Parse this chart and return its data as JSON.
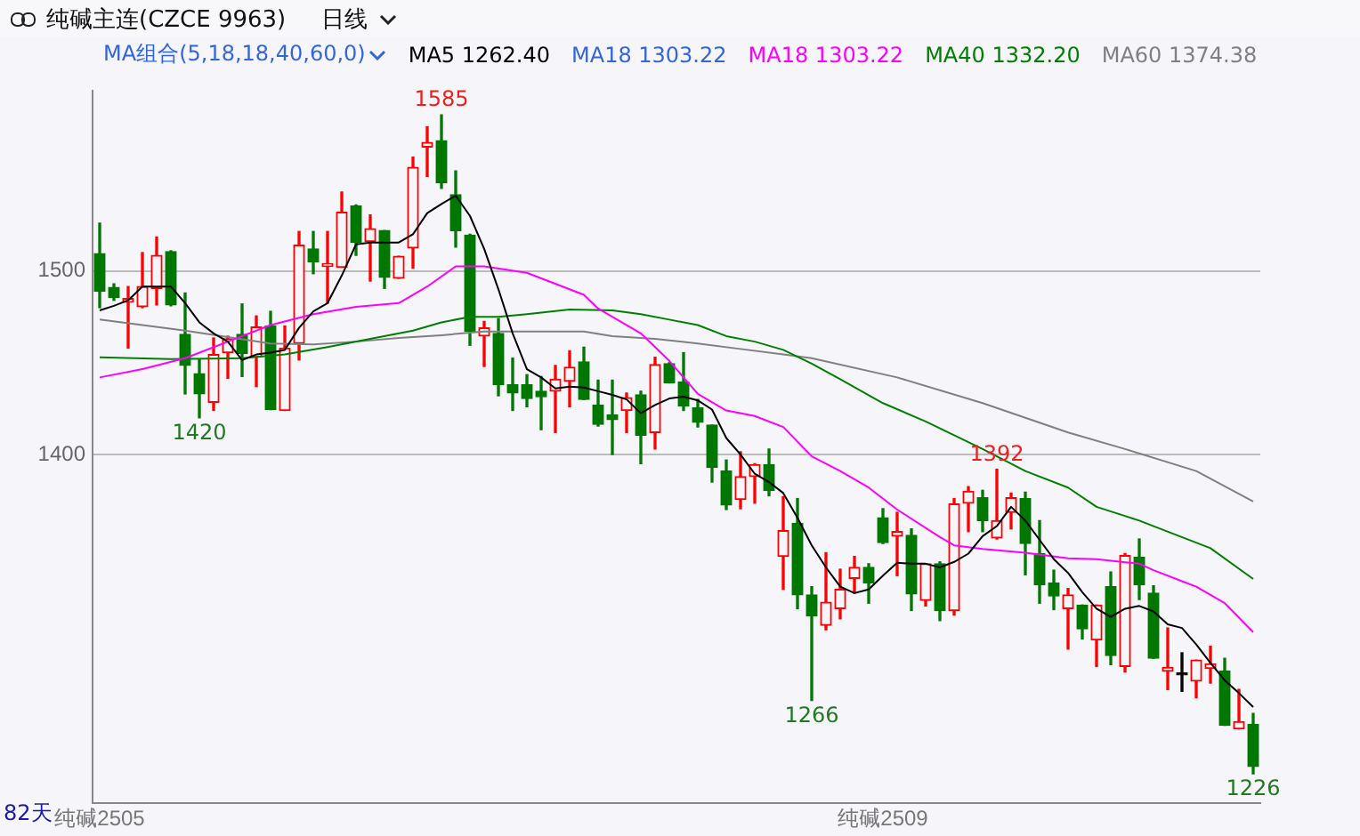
{
  "chart_data": {
    "type": "candlestick",
    "title": "纯碱主连(CZCE 9963)",
    "subtitle": "MA组合(5,18,18,40,60,0)",
    "categories": [
      "纯碱2505",
      null,
      null,
      null,
      null,
      null,
      null,
      null,
      null,
      null,
      null,
      null,
      null,
      null,
      null,
      null,
      null,
      null,
      null,
      null,
      null,
      null,
      null,
      null,
      null,
      null,
      null,
      null,
      null,
      null,
      null,
      null,
      null,
      null,
      null,
      null,
      null,
      null,
      null,
      null,
      null,
      null,
      null,
      null,
      null,
      null,
      null,
      null,
      null,
      null,
      null,
      null,
      null,
      null,
      null,
      "纯碱2509",
      null,
      null,
      null,
      null,
      null,
      null,
      null,
      null,
      null,
      null,
      null,
      null,
      null,
      null,
      null,
      null,
      null,
      null,
      null,
      null,
      null,
      null,
      null,
      null,
      null,
      null
    ],
    "ohlc": [
      [
        1509.5,
        1526,
        1480,
        1489
      ],
      [
        1491,
        1493,
        1484,
        1485.5
      ],
      [
        1483,
        1491.5,
        1458,
        1485
      ],
      [
        1480.5,
        1510,
        1480,
        1491.5
      ],
      [
        1490.5,
        1518.5,
        1481.5,
        1508.5
      ],
      [
        1510.5,
        1511,
        1481,
        1481.5
      ],
      [
        1465.5,
        1488,
        1433,
        1448.5
      ],
      [
        1444,
        1452,
        1420,
        1433
      ],
      [
        1428.5,
        1463.5,
        1424,
        1454.5
      ],
      [
        1455.5,
        1464.5,
        1441.5,
        1463
      ],
      [
        1465.5,
        1482,
        1442.5,
        1455
      ],
      [
        1453,
        1475.5,
        1437,
        1469.5
      ],
      [
        1470,
        1478,
        1424.5,
        1424.5
      ],
      [
        1424,
        1470,
        1424,
        1458
      ],
      [
        1460.5,
        1521.5,
        1451.5,
        1514
      ],
      [
        1512,
        1521.5,
        1498.5,
        1505
      ],
      [
        1502.5,
        1521.5,
        1482.5,
        1504
      ],
      [
        1502,
        1543,
        1502,
        1532
      ],
      [
        1535.5,
        1536,
        1508.5,
        1515.5
      ],
      [
        1516,
        1530.5,
        1494.5,
        1523
      ],
      [
        1522,
        1522,
        1490.5,
        1496.5
      ],
      [
        1496,
        1508,
        1496,
        1508
      ],
      [
        1512.5,
        1562,
        1501.5,
        1556.5
      ],
      [
        1567.5,
        1578.5,
        1551.5,
        1570
      ],
      [
        1571,
        1585,
        1545,
        1548
      ],
      [
        1541.5,
        1554.5,
        1513,
        1522
      ],
      [
        1519.5,
        1520,
        1459.5,
        1467
      ],
      [
        1464.5,
        1472.5,
        1448,
        1469
      ],
      [
        1466,
        1474,
        1432,
        1438
      ],
      [
        1438,
        1452.5,
        1424,
        1433.5
      ],
      [
        1438,
        1443.5,
        1426,
        1430.5
      ],
      [
        1434.5,
        1442.5,
        1413.5,
        1431.5
      ],
      [
        1434.5,
        1448.5,
        1412,
        1441
      ],
      [
        1440,
        1456.5,
        1426,
        1447.5
      ],
      [
        1450.5,
        1458.5,
        1430,
        1430
      ],
      [
        1427,
        1440.5,
        1415.5,
        1416.5
      ],
      [
        1421.5,
        1440.5,
        1400,
        1419
      ],
      [
        1424,
        1433.5,
        1412,
        1431
      ],
      [
        1432.5,
        1434.5,
        1395,
        1410.5
      ],
      [
        1412,
        1453,
        1403,
        1449
      ],
      [
        1449.5,
        1450,
        1439,
        1439
      ],
      [
        1439.5,
        1455.5,
        1424,
        1426.5
      ],
      [
        1425.5,
        1430,
        1415,
        1417.5
      ],
      [
        1416,
        1416,
        1385,
        1393
      ],
      [
        1391,
        1397,
        1370,
        1372.5
      ],
      [
        1375.5,
        1401.5,
        1370.5,
        1388
      ],
      [
        1388,
        1395,
        1373.5,
        1394.5
      ],
      [
        1394.5,
        1403,
        1377.5,
        1380.5
      ],
      [
        1344.5,
        1377,
        1326.5,
        1358.5
      ],
      [
        1362.5,
        1376,
        1316,
        1323.5
      ],
      [
        1323.5,
        1328,
        1266,
        1312
      ],
      [
        1307,
        1346.5,
        1304.5,
        1319.5
      ],
      [
        1316,
        1337.5,
        1310.5,
        1326.5
      ],
      [
        1332.5,
        1344.5,
        1324.5,
        1338.5
      ],
      [
        1338.5,
        1340.5,
        1319,
        1330
      ],
      [
        1365.5,
        1370.5,
        1351.5,
        1352
      ],
      [
        1355.5,
        1368.5,
        1334,
        1358
      ],
      [
        1356,
        1359.5,
        1315,
        1324
      ],
      [
        1320.5,
        1340.5,
        1317.5,
        1340.5
      ],
      [
        1340.5,
        1341.5,
        1309.5,
        1315
      ],
      [
        1315,
        1376,
        1312.5,
        1373
      ],
      [
        1373.5,
        1382.5,
        1358,
        1380
      ],
      [
        1376.5,
        1380.5,
        1358,
        1364
      ],
      [
        1354.5,
        1392,
        1354,
        1364
      ],
      [
        1368.5,
        1379,
        1359.5,
        1376.5
      ],
      [
        1376,
        1379.5,
        1334.5,
        1351.5
      ],
      [
        1346,
        1364,
        1319,
        1329
      ],
      [
        1330,
        1337,
        1315.5,
        1323
      ],
      [
        1316,
        1327,
        1294,
        1323.5
      ],
      [
        1318,
        1318,
        1299.5,
        1305
      ],
      [
        1299,
        1318,
        1284.5,
        1318
      ],
      [
        1328,
        1336,
        1285.5,
        1290.5
      ],
      [
        1284.5,
        1346,
        1281.5,
        1345
      ],
      [
        1344,
        1354,
        1321,
        1329
      ],
      [
        1324.5,
        1328.5,
        1289,
        1289
      ],
      [
        1282,
        1305.5,
        1272,
        1284
      ],
      [
        1280,
        1292,
        1271,
        1280
      ],
      [
        1276.5,
        1288,
        1267.5,
        1288
      ],
      [
        1283.5,
        1295.5,
        1275.5,
        1286
      ],
      [
        1282,
        1289,
        1252.5,
        1252.5
      ],
      [
        1250.5,
        1272,
        1250.5,
        1254.5
      ],
      [
        1253,
        1259,
        1226,
        1230
      ]
    ],
    "series": [
      {
        "type": "line",
        "name": "MA5 1262.40",
        "color": "#000000",
        "values": [
          1478.5,
          1481,
          1484,
          1491.5,
          1491.5,
          1491.5,
          1482.5,
          1472,
          1466,
          1461.5,
          1451.5,
          1454.5,
          1455.5,
          1457,
          1469,
          1478,
          1482.5,
          1497.5,
          1514.5,
          1515.5,
          1515.5,
          1515.5,
          1520,
          1531.5,
          1536.5,
          1541,
          1530,
          1512,
          1490,
          1466,
          1446.5,
          1442,
          1436,
          1437,
          1436.5,
          1434.5,
          1432.5,
          1430,
          1422.5,
          1427,
          1430.5,
          1431.5,
          1429.5,
          1424.5,
          1409,
          1400,
          1389.5,
          1385,
          1379,
          1365.5,
          1350.5,
          1338.5,
          1328,
          1324.5,
          1326.5,
          1334,
          1341,
          1340.5,
          1340.5,
          1338.5,
          1341.5,
          1346,
          1355.5,
          1361,
          1371.5,
          1364,
          1353.5,
          1343,
          1335.5,
          1325,
          1316,
          1311.5,
          1316,
          1317.5,
          1314.5,
          1307.5,
          1305.5,
          1296.5,
          1286.5,
          1277,
          1270,
          1262.4
        ]
      },
      {
        "type": "line",
        "name": "MA18 1303.22",
        "color": "#ff00ff",
        "values": [
          1442,
          null,
          null,
          1446.5,
          null,
          null,
          1452.5,
          null,
          null,
          1461.5,
          null,
          null,
          1470.5,
          null,
          null,
          1476.5,
          null,
          null,
          1480.5,
          null,
          null,
          1482.5,
          null,
          1491.5,
          null,
          1502.5,
          null,
          1502.5,
          null,
          null,
          1499,
          null,
          null,
          null,
          1487,
          1479.5,
          null,
          null,
          1466,
          null,
          1451,
          null,
          1433,
          null,
          1424,
          null,
          1421,
          null,
          1415,
          null,
          1399,
          null,
          1391,
          null,
          1382,
          null,
          1370,
          null,
          null,
          1355,
          1350.5,
          null,
          1348.5,
          null,
          null,
          1346.5,
          null,
          null,
          1343.5,
          null,
          1343,
          null,
          null,
          1340.5,
          1337,
          null,
          1331,
          1328,
          null,
          1319,
          null,
          1303.22
        ]
      },
      {
        "type": "line",
        "name": "MA40 1332.20",
        "color": "#008000",
        "values": [
          1453,
          null,
          null,
          null,
          null,
          1452,
          null,
          null,
          null,
          null,
          1452.5,
          null,
          null,
          1454.5,
          null,
          null,
          1458.5,
          null,
          null,
          1463,
          null,
          null,
          1467.5,
          null,
          1472,
          null,
          1475,
          null,
          1475,
          null,
          1476.5,
          null,
          null,
          1479,
          null,
          null,
          1478.5,
          null,
          1476.5,
          null,
          1473.5,
          null,
          1470.5,
          null,
          1464.5,
          null,
          1461.5,
          null,
          1457,
          null,
          1449.5,
          null,
          1441,
          null,
          null,
          1428,
          null,
          null,
          1418,
          null,
          null,
          null,
          1403,
          null,
          null,
          1391,
          null,
          null,
          1382,
          null,
          1371.5,
          null,
          null,
          1364,
          null,
          null,
          null,
          null,
          1349,
          null,
          null,
          1332.2
        ]
      },
      {
        "type": "line",
        "name": "MA60 1374.38",
        "color": "#808080",
        "values": [
          1473.5,
          null,
          null,
          1470.5,
          null,
          null,
          1467.5,
          null,
          null,
          1464,
          null,
          null,
          1460.5,
          null,
          null,
          1460,
          null,
          null,
          1461.5,
          null,
          null,
          1463.5,
          null,
          null,
          1465,
          null,
          null,
          1467,
          null,
          null,
          null,
          null,
          null,
          null,
          1467,
          null,
          1464.5,
          null,
          null,
          1463,
          null,
          null,
          1460.5,
          null,
          null,
          1457.5,
          null,
          null,
          1454.5,
          null,
          1452.5,
          null,
          null,
          null,
          null,
          null,
          1442,
          null,
          null,
          null,
          null,
          null,
          1428,
          null,
          null,
          null,
          null,
          null,
          1412,
          null,
          null,
          null,
          1403,
          null,
          null,
          null,
          null,
          1391,
          null,
          null,
          null,
          1374.38
        ]
      }
    ],
    "ylim": [
      1210,
      1598
    ],
    "yticks": [
      1500,
      1400
    ],
    "grid": "y",
    "legend": "top",
    "marker": "none",
    "annotations": [
      "日线",
      "MA18 1303.22",
      "82天",
      "1585",
      "1420",
      "1266",
      "1392",
      "1226"
    ]
  }
}
